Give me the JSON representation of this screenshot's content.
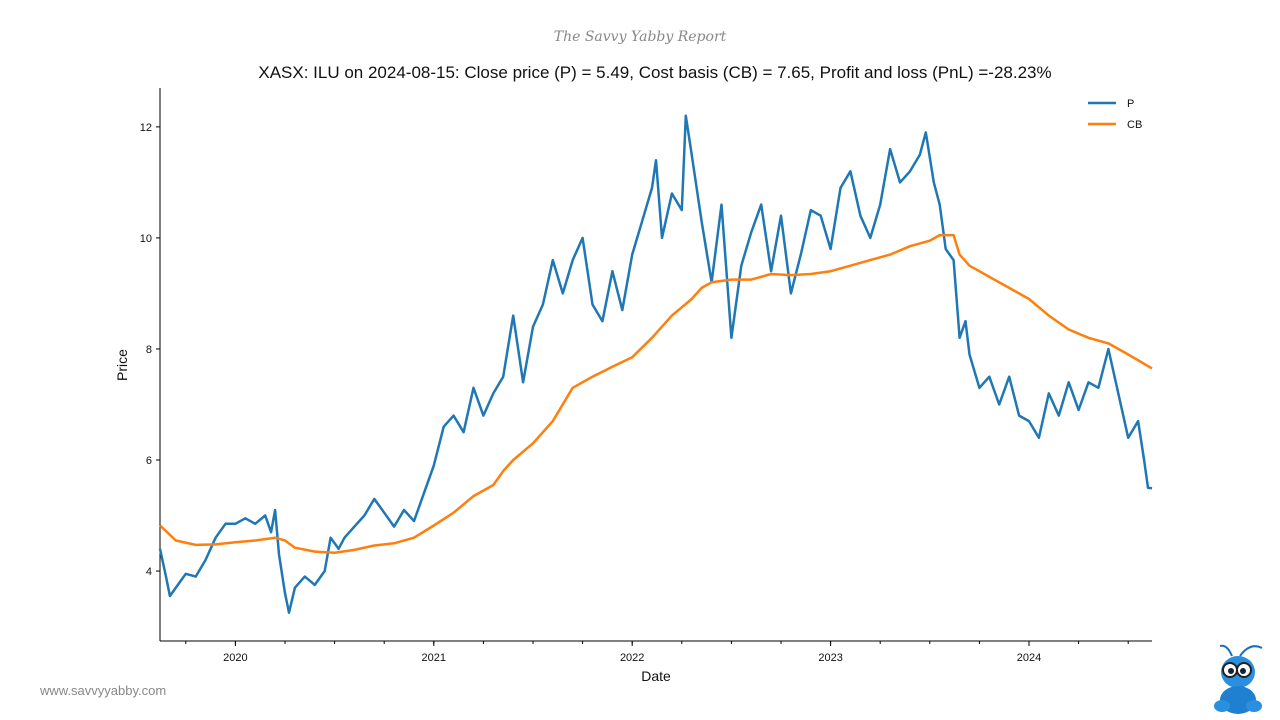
{
  "brand": "The Savvy Yabby Report",
  "website": "www.savvyyabby.com",
  "chart_data": {
    "type": "line",
    "title": "XASX: ILU on 2024-08-15: Close price (P) = 5.49, Cost basis (CB) = 7.65, Profit and loss (PnL) =-28.23%",
    "xlabel": "Date",
    "ylabel": "Price",
    "xlim": [
      2019.62,
      2024.62
    ],
    "ylim": [
      2.74,
      12.7
    ],
    "x_ticks": [
      {
        "value": 2020,
        "label": "2020"
      },
      {
        "value": 2021,
        "label": "2021"
      },
      {
        "value": 2022,
        "label": "2022"
      },
      {
        "value": 2023,
        "label": "2023"
      },
      {
        "value": 2024,
        "label": "2024"
      }
    ],
    "y_ticks": [
      {
        "value": 4,
        "label": "4"
      },
      {
        "value": 6,
        "label": "6"
      },
      {
        "value": 8,
        "label": "8"
      },
      {
        "value": 10,
        "label": "10"
      },
      {
        "value": 12,
        "label": "12"
      }
    ],
    "grid": false,
    "legend": "top-right",
    "series": [
      {
        "name": "P",
        "color": "#1f77b4",
        "points": [
          [
            2019.62,
            4.4
          ],
          [
            2019.65,
            3.9
          ],
          [
            2019.67,
            3.55
          ],
          [
            2019.72,
            3.8
          ],
          [
            2019.75,
            3.95
          ],
          [
            2019.8,
            3.9
          ],
          [
            2019.85,
            4.2
          ],
          [
            2019.9,
            4.6
          ],
          [
            2019.95,
            4.85
          ],
          [
            2020.0,
            4.85
          ],
          [
            2020.05,
            4.95
          ],
          [
            2020.1,
            4.85
          ],
          [
            2020.15,
            5.0
          ],
          [
            2020.18,
            4.7
          ],
          [
            2020.2,
            5.1
          ],
          [
            2020.22,
            4.3
          ],
          [
            2020.25,
            3.6
          ],
          [
            2020.27,
            3.25
          ],
          [
            2020.3,
            3.7
          ],
          [
            2020.35,
            3.9
          ],
          [
            2020.4,
            3.75
          ],
          [
            2020.45,
            4.0
          ],
          [
            2020.48,
            4.6
          ],
          [
            2020.52,
            4.4
          ],
          [
            2020.55,
            4.6
          ],
          [
            2020.6,
            4.8
          ],
          [
            2020.65,
            5.0
          ],
          [
            2020.7,
            5.3
          ],
          [
            2020.75,
            5.05
          ],
          [
            2020.8,
            4.8
          ],
          [
            2020.85,
            5.1
          ],
          [
            2020.9,
            4.9
          ],
          [
            2020.95,
            5.4
          ],
          [
            2021.0,
            5.9
          ],
          [
            2021.05,
            6.6
          ],
          [
            2021.1,
            6.8
          ],
          [
            2021.15,
            6.5
          ],
          [
            2021.2,
            7.3
          ],
          [
            2021.25,
            6.8
          ],
          [
            2021.3,
            7.2
          ],
          [
            2021.35,
            7.5
          ],
          [
            2021.4,
            8.6
          ],
          [
            2021.45,
            7.4
          ],
          [
            2021.5,
            8.4
          ],
          [
            2021.55,
            8.8
          ],
          [
            2021.6,
            9.6
          ],
          [
            2021.65,
            9.0
          ],
          [
            2021.7,
            9.6
          ],
          [
            2021.75,
            10.0
          ],
          [
            2021.8,
            8.8
          ],
          [
            2021.85,
            8.5
          ],
          [
            2021.9,
            9.4
          ],
          [
            2021.95,
            8.7
          ],
          [
            2022.0,
            9.7
          ],
          [
            2022.05,
            10.3
          ],
          [
            2022.1,
            10.9
          ],
          [
            2022.12,
            11.4
          ],
          [
            2022.15,
            10.0
          ],
          [
            2022.2,
            10.8
          ],
          [
            2022.25,
            10.5
          ],
          [
            2022.27,
            12.2
          ],
          [
            2022.3,
            11.5
          ],
          [
            2022.35,
            10.3
          ],
          [
            2022.4,
            9.2
          ],
          [
            2022.45,
            10.6
          ],
          [
            2022.5,
            8.2
          ],
          [
            2022.55,
            9.5
          ],
          [
            2022.6,
            10.1
          ],
          [
            2022.65,
            10.6
          ],
          [
            2022.7,
            9.4
          ],
          [
            2022.75,
            10.4
          ],
          [
            2022.8,
            9.0
          ],
          [
            2022.85,
            9.7
          ],
          [
            2022.9,
            10.5
          ],
          [
            2022.95,
            10.4
          ],
          [
            2023.0,
            9.8
          ],
          [
            2023.05,
            10.9
          ],
          [
            2023.1,
            11.2
          ],
          [
            2023.15,
            10.4
          ],
          [
            2023.2,
            10.0
          ],
          [
            2023.25,
            10.6
          ],
          [
            2023.3,
            11.6
          ],
          [
            2023.35,
            11.0
          ],
          [
            2023.4,
            11.2
          ],
          [
            2023.45,
            11.5
          ],
          [
            2023.48,
            11.9
          ],
          [
            2023.52,
            11.0
          ],
          [
            2023.55,
            10.6
          ],
          [
            2023.58,
            9.8
          ],
          [
            2023.62,
            9.6
          ],
          [
            2023.65,
            8.2
          ],
          [
            2023.68,
            8.5
          ],
          [
            2023.7,
            7.9
          ],
          [
            2023.75,
            7.3
          ],
          [
            2023.8,
            7.5
          ],
          [
            2023.85,
            7.0
          ],
          [
            2023.9,
            7.5
          ],
          [
            2023.95,
            6.8
          ],
          [
            2024.0,
            6.7
          ],
          [
            2024.05,
            6.4
          ],
          [
            2024.1,
            7.2
          ],
          [
            2024.15,
            6.8
          ],
          [
            2024.2,
            7.4
          ],
          [
            2024.25,
            6.9
          ],
          [
            2024.3,
            7.4
          ],
          [
            2024.35,
            7.3
          ],
          [
            2024.4,
            8.0
          ],
          [
            2024.45,
            7.2
          ],
          [
            2024.5,
            6.4
          ],
          [
            2024.55,
            6.7
          ],
          [
            2024.58,
            6.0
          ],
          [
            2024.6,
            5.5
          ],
          [
            2024.62,
            5.49
          ]
        ]
      },
      {
        "name": "CB",
        "color": "#ff7f0e",
        "points": [
          [
            2019.62,
            4.82
          ],
          [
            2019.7,
            4.55
          ],
          [
            2019.8,
            4.47
          ],
          [
            2019.9,
            4.48
          ],
          [
            2020.0,
            4.52
          ],
          [
            2020.1,
            4.55
          ],
          [
            2020.2,
            4.6
          ],
          [
            2020.25,
            4.55
          ],
          [
            2020.3,
            4.42
          ],
          [
            2020.4,
            4.35
          ],
          [
            2020.5,
            4.33
          ],
          [
            2020.6,
            4.38
          ],
          [
            2020.7,
            4.46
          ],
          [
            2020.8,
            4.5
          ],
          [
            2020.9,
            4.6
          ],
          [
            2021.0,
            4.82
          ],
          [
            2021.1,
            5.05
          ],
          [
            2021.2,
            5.35
          ],
          [
            2021.3,
            5.55
          ],
          [
            2021.35,
            5.8
          ],
          [
            2021.4,
            6.0
          ],
          [
            2021.5,
            6.3
          ],
          [
            2021.6,
            6.7
          ],
          [
            2021.7,
            7.3
          ],
          [
            2021.8,
            7.5
          ],
          [
            2021.9,
            7.68
          ],
          [
            2022.0,
            7.85
          ],
          [
            2022.1,
            8.2
          ],
          [
            2022.2,
            8.6
          ],
          [
            2022.3,
            8.9
          ],
          [
            2022.35,
            9.1
          ],
          [
            2022.4,
            9.2
          ],
          [
            2022.5,
            9.25
          ],
          [
            2022.6,
            9.25
          ],
          [
            2022.7,
            9.35
          ],
          [
            2022.8,
            9.33
          ],
          [
            2022.9,
            9.35
          ],
          [
            2023.0,
            9.4
          ],
          [
            2023.1,
            9.5
          ],
          [
            2023.2,
            9.6
          ],
          [
            2023.3,
            9.7
          ],
          [
            2023.4,
            9.85
          ],
          [
            2023.5,
            9.95
          ],
          [
            2023.55,
            10.05
          ],
          [
            2023.62,
            10.05
          ],
          [
            2023.65,
            9.7
          ],
          [
            2023.7,
            9.5
          ],
          [
            2023.8,
            9.3
          ],
          [
            2023.9,
            9.1
          ],
          [
            2024.0,
            8.9
          ],
          [
            2024.1,
            8.6
          ],
          [
            2024.2,
            8.35
          ],
          [
            2024.3,
            8.2
          ],
          [
            2024.4,
            8.1
          ],
          [
            2024.5,
            7.9
          ],
          [
            2024.62,
            7.65
          ]
        ]
      }
    ]
  }
}
